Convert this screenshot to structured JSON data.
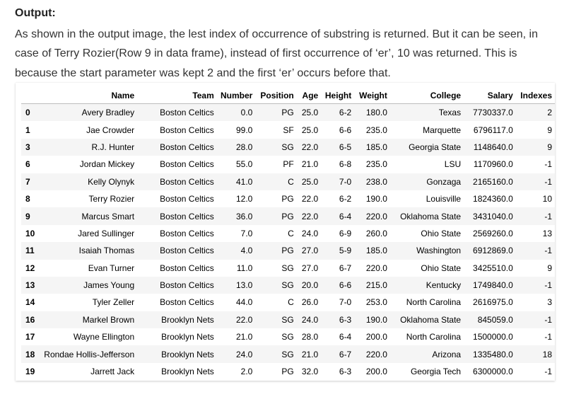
{
  "heading": "Output:",
  "paragraph": "As shown in the output image, the lest index of occurrence of substring is returned. But it can be seen, in case of Terry Rozier(Row 9 in data frame), instead of first occurrence of ‘er’, 10 was returned. This is because the start parameter was kept 2 and the first ‘er’ occurs before that.",
  "table": {
    "columns": [
      "",
      "Name",
      "Team",
      "Number",
      "Position",
      "Age",
      "Height",
      "Weight",
      "College",
      "Salary",
      "Indexes"
    ],
    "rows": [
      [
        "0",
        "Avery Bradley",
        "Boston Celtics",
        "0.0",
        "PG",
        "25.0",
        "6-2",
        "180.0",
        "Texas",
        "7730337.0",
        "2"
      ],
      [
        "1",
        "Jae Crowder",
        "Boston Celtics",
        "99.0",
        "SF",
        "25.0",
        "6-6",
        "235.0",
        "Marquette",
        "6796117.0",
        "9"
      ],
      [
        "3",
        "R.J. Hunter",
        "Boston Celtics",
        "28.0",
        "SG",
        "22.0",
        "6-5",
        "185.0",
        "Georgia State",
        "1148640.0",
        "9"
      ],
      [
        "6",
        "Jordan Mickey",
        "Boston Celtics",
        "55.0",
        "PF",
        "21.0",
        "6-8",
        "235.0",
        "LSU",
        "1170960.0",
        "-1"
      ],
      [
        "7",
        "Kelly Olynyk",
        "Boston Celtics",
        "41.0",
        "C",
        "25.0",
        "7-0",
        "238.0",
        "Gonzaga",
        "2165160.0",
        "-1"
      ],
      [
        "8",
        "Terry Rozier",
        "Boston Celtics",
        "12.0",
        "PG",
        "22.0",
        "6-2",
        "190.0",
        "Louisville",
        "1824360.0",
        "10"
      ],
      [
        "9",
        "Marcus Smart",
        "Boston Celtics",
        "36.0",
        "PG",
        "22.0",
        "6-4",
        "220.0",
        "Oklahoma State",
        "3431040.0",
        "-1"
      ],
      [
        "10",
        "Jared Sullinger",
        "Boston Celtics",
        "7.0",
        "C",
        "24.0",
        "6-9",
        "260.0",
        "Ohio State",
        "2569260.0",
        "13"
      ],
      [
        "11",
        "Isaiah Thomas",
        "Boston Celtics",
        "4.0",
        "PG",
        "27.0",
        "5-9",
        "185.0",
        "Washington",
        "6912869.0",
        "-1"
      ],
      [
        "12",
        "Evan Turner",
        "Boston Celtics",
        "11.0",
        "SG",
        "27.0",
        "6-7",
        "220.0",
        "Ohio State",
        "3425510.0",
        "9"
      ],
      [
        "13",
        "James Young",
        "Boston Celtics",
        "13.0",
        "SG",
        "20.0",
        "6-6",
        "215.0",
        "Kentucky",
        "1749840.0",
        "-1"
      ],
      [
        "14",
        "Tyler Zeller",
        "Boston Celtics",
        "44.0",
        "C",
        "26.0",
        "7-0",
        "253.0",
        "North Carolina",
        "2616975.0",
        "3"
      ],
      [
        "16",
        "Markel Brown",
        "Brooklyn Nets",
        "22.0",
        "SG",
        "24.0",
        "6-3",
        "190.0",
        "Oklahoma State",
        "845059.0",
        "-1"
      ],
      [
        "17",
        "Wayne Ellington",
        "Brooklyn Nets",
        "21.0",
        "SG",
        "28.0",
        "6-4",
        "200.0",
        "North Carolina",
        "1500000.0",
        "-1"
      ],
      [
        "18",
        "Rondae Hollis-Jefferson",
        "Brooklyn Nets",
        "24.0",
        "SG",
        "21.0",
        "6-7",
        "220.0",
        "Arizona",
        "1335480.0",
        "18"
      ],
      [
        "19",
        "Jarrett Jack",
        "Brooklyn Nets",
        "2.0",
        "PG",
        "32.0",
        "6-3",
        "200.0",
        "Georgia Tech",
        "6300000.0",
        "-1"
      ]
    ]
  }
}
